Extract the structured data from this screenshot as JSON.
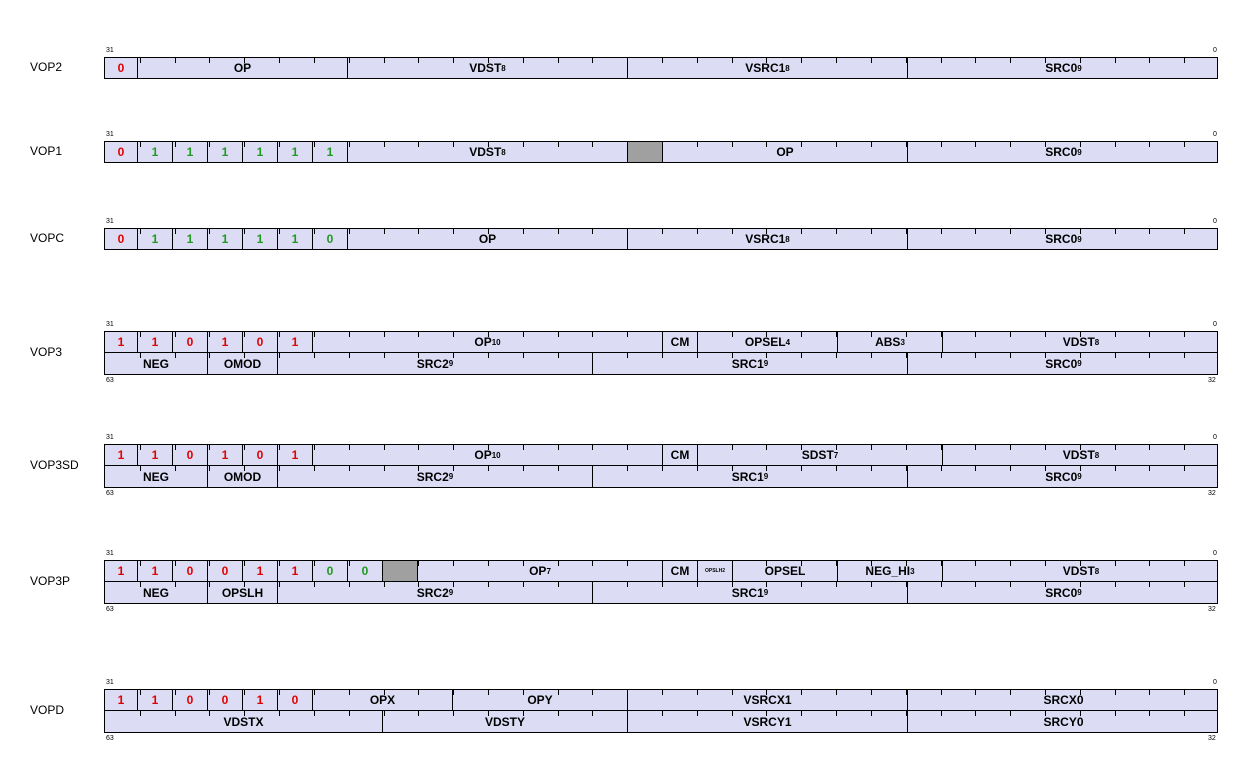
{
  "encodings": [
    {
      "name": "VOP2",
      "words": [
        {
          "hi": "31",
          "lo": "0",
          "hi_pos": "top",
          "lo_pos": "top",
          "fields": [
            {
              "t": "0",
              "sub": "",
              "w": 32,
              "c": "red"
            },
            {
              "t": "OP",
              "sub": "",
              "w": 210
            },
            {
              "t": "VDST",
              "sub": "8",
              "w": 280
            },
            {
              "t": "VSRC1",
              "sub": "8",
              "w": 280
            },
            {
              "t": "SRC0",
              "sub": "9",
              "w": 312
            }
          ]
        }
      ]
    },
    {
      "name": "VOP1",
      "words": [
        {
          "hi": "31",
          "lo": "0",
          "hi_pos": "top",
          "lo_pos": "top",
          "fields": [
            {
              "t": "0",
              "sub": "",
              "w": 32,
              "c": "red"
            },
            {
              "t": "1",
              "sub": "",
              "w": 35,
              "c": "green"
            },
            {
              "t": "1",
              "sub": "",
              "w": 35,
              "c": "green"
            },
            {
              "t": "1",
              "sub": "",
              "w": 35,
              "c": "green"
            },
            {
              "t": "1",
              "sub": "",
              "w": 35,
              "c": "green"
            },
            {
              "t": "1",
              "sub": "",
              "w": 35,
              "c": "green"
            },
            {
              "t": "1",
              "sub": "",
              "w": 35,
              "c": "green"
            },
            {
              "t": "VDST",
              "sub": "8",
              "w": 280
            },
            {
              "t": "",
              "sub": "",
              "w": 35,
              "gray": true
            },
            {
              "t": "OP",
              "sub": "",
              "w": 245
            },
            {
              "t": "SRC0",
              "sub": "9",
              "w": 312
            }
          ]
        }
      ]
    },
    {
      "name": "VOPC",
      "words": [
        {
          "hi": "31",
          "lo": "0",
          "hi_pos": "top",
          "lo_pos": "top",
          "fields": [
            {
              "t": "0",
              "sub": "",
              "w": 32,
              "c": "red"
            },
            {
              "t": "1",
              "sub": "",
              "w": 35,
              "c": "green"
            },
            {
              "t": "1",
              "sub": "",
              "w": 35,
              "c": "green"
            },
            {
              "t": "1",
              "sub": "",
              "w": 35,
              "c": "green"
            },
            {
              "t": "1",
              "sub": "",
              "w": 35,
              "c": "green"
            },
            {
              "t": "1",
              "sub": "",
              "w": 35,
              "c": "green"
            },
            {
              "t": "0",
              "sub": "",
              "w": 35,
              "c": "green"
            },
            {
              "t": "OP",
              "sub": "",
              "w": 280
            },
            {
              "t": "VSRC1",
              "sub": "8",
              "w": 280
            },
            {
              "t": "SRC0",
              "sub": "9",
              "w": 312
            }
          ]
        }
      ]
    },
    {
      "name": "VOP3",
      "words": [
        {
          "hi": "31",
          "lo": "0",
          "hi_pos": "top",
          "lo_pos": "top",
          "fields": [
            {
              "t": "1",
              "sub": "",
              "w": 32,
              "c": "red"
            },
            {
              "t": "1",
              "sub": "",
              "w": 35,
              "c": "red"
            },
            {
              "t": "0",
              "sub": "",
              "w": 35,
              "c": "red"
            },
            {
              "t": "1",
              "sub": "",
              "w": 35,
              "c": "red"
            },
            {
              "t": "0",
              "sub": "",
              "w": 35,
              "c": "red"
            },
            {
              "t": "1",
              "sub": "",
              "w": 35,
              "c": "red"
            },
            {
              "t": "OP",
              "sub": "10",
              "w": 350
            },
            {
              "t": "CM",
              "sub": "",
              "w": 35
            },
            {
              "t": "OPSEL",
              "sub": "4",
              "w": 140
            },
            {
              "t": "ABS",
              "sub": "3",
              "w": 105
            },
            {
              "t": "VDST",
              "sub": "8",
              "w": 277
            }
          ]
        },
        {
          "hi": "63",
          "lo": "32",
          "hi_pos": "bottom",
          "lo_pos": "bottom",
          "fields": [
            {
              "t": "NEG",
              "sub": "",
              "w": 102
            },
            {
              "t": "OMOD",
              "sub": "",
              "w": 70
            },
            {
              "t": "SRC2",
              "sub": "9",
              "w": 315
            },
            {
              "t": "SRC1",
              "sub": "9",
              "w": 315
            },
            {
              "t": "SRC0",
              "sub": "9",
              "w": 312
            }
          ]
        }
      ]
    },
    {
      "name": "VOP3SD",
      "words": [
        {
          "hi": "31",
          "lo": "0",
          "hi_pos": "top",
          "lo_pos": "top",
          "fields": [
            {
              "t": "1",
              "sub": "",
              "w": 32,
              "c": "red"
            },
            {
              "t": "1",
              "sub": "",
              "w": 35,
              "c": "red"
            },
            {
              "t": "0",
              "sub": "",
              "w": 35,
              "c": "red"
            },
            {
              "t": "1",
              "sub": "",
              "w": 35,
              "c": "red"
            },
            {
              "t": "0",
              "sub": "",
              "w": 35,
              "c": "red"
            },
            {
              "t": "1",
              "sub": "",
              "w": 35,
              "c": "red"
            },
            {
              "t": "OP",
              "sub": "10",
              "w": 350
            },
            {
              "t": "CM",
              "sub": "",
              "w": 35
            },
            {
              "t": "SDST",
              "sub": "7",
              "w": 245
            },
            {
              "t": "VDST",
              "sub": "8",
              "w": 277
            }
          ]
        },
        {
          "hi": "63",
          "lo": "32",
          "hi_pos": "bottom",
          "lo_pos": "bottom",
          "fields": [
            {
              "t": "NEG",
              "sub": "",
              "w": 102
            },
            {
              "t": "OMOD",
              "sub": "",
              "w": 70
            },
            {
              "t": "SRC2",
              "sub": "9",
              "w": 315
            },
            {
              "t": "SRC1",
              "sub": "9",
              "w": 315
            },
            {
              "t": "SRC0",
              "sub": "9",
              "w": 312
            }
          ]
        }
      ]
    },
    {
      "name": "VOP3P",
      "words": [
        {
          "hi": "31",
          "lo": "0",
          "hi_pos": "top",
          "lo_pos": "top",
          "fields": [
            {
              "t": "1",
              "sub": "",
              "w": 32,
              "c": "red"
            },
            {
              "t": "1",
              "sub": "",
              "w": 35,
              "c": "red"
            },
            {
              "t": "0",
              "sub": "",
              "w": 35,
              "c": "red"
            },
            {
              "t": "0",
              "sub": "",
              "w": 35,
              "c": "red"
            },
            {
              "t": "1",
              "sub": "",
              "w": 35,
              "c": "red"
            },
            {
              "t": "1",
              "sub": "",
              "w": 35,
              "c": "red"
            },
            {
              "t": "0",
              "sub": "",
              "w": 35,
              "c": "green"
            },
            {
              "t": "0",
              "sub": "",
              "w": 35,
              "c": "green"
            },
            {
              "t": "",
              "sub": "",
              "w": 35,
              "gray": true
            },
            {
              "t": "OP",
              "sub": "7",
              "w": 245
            },
            {
              "t": "CM",
              "sub": "",
              "w": 35
            },
            {
              "t": "OPSLH2",
              "sub": "",
              "w": 35,
              "tiny": true
            },
            {
              "t": "OPSEL",
              "sub": "",
              "w": 105
            },
            {
              "t": "NEG_HI",
              "sub": "3",
              "w": 105
            },
            {
              "t": "VDST",
              "sub": "8",
              "w": 277
            }
          ]
        },
        {
          "hi": "63",
          "lo": "32",
          "hi_pos": "bottom",
          "lo_pos": "bottom",
          "fields": [
            {
              "t": "NEG",
              "sub": "",
              "w": 102
            },
            {
              "t": "OPSLH",
              "sub": "",
              "w": 70
            },
            {
              "t": "SRC2",
              "sub": "9",
              "w": 315
            },
            {
              "t": "SRC1",
              "sub": "9",
              "w": 315
            },
            {
              "t": "SRC0",
              "sub": "9",
              "w": 312
            }
          ]
        }
      ]
    },
    {
      "name": "VOPD",
      "words": [
        {
          "hi": "31",
          "lo": "0",
          "hi_pos": "top",
          "lo_pos": "top",
          "fields": [
            {
              "t": "1",
              "sub": "",
              "w": 32,
              "c": "red"
            },
            {
              "t": "1",
              "sub": "",
              "w": 35,
              "c": "red"
            },
            {
              "t": "0",
              "sub": "",
              "w": 35,
              "c": "red"
            },
            {
              "t": "0",
              "sub": "",
              "w": 35,
              "c": "red"
            },
            {
              "t": "1",
              "sub": "",
              "w": 35,
              "c": "red"
            },
            {
              "t": "0",
              "sub": "",
              "w": 35,
              "c": "red"
            },
            {
              "t": "OPX",
              "sub": "",
              "w": 140
            },
            {
              "t": "OPY",
              "sub": "",
              "w": 175
            },
            {
              "t": "VSRCX1",
              "sub": "",
              "w": 280
            },
            {
              "t": "SRCX0",
              "sub": "",
              "w": 312
            }
          ]
        },
        {
          "hi": "63",
          "lo": "32",
          "hi_pos": "bottom",
          "lo_pos": "bottom",
          "fields": [
            {
              "t": "VDSTX",
              "sub": "",
              "w": 277
            },
            {
              "t": "VDSTY",
              "sub": "",
              "w": 245
            },
            {
              "t": "VSRCY1",
              "sub": "",
              "w": 280
            },
            {
              "t": "SRCY0",
              "sub": "",
              "w": 312
            }
          ]
        }
      ]
    }
  ]
}
